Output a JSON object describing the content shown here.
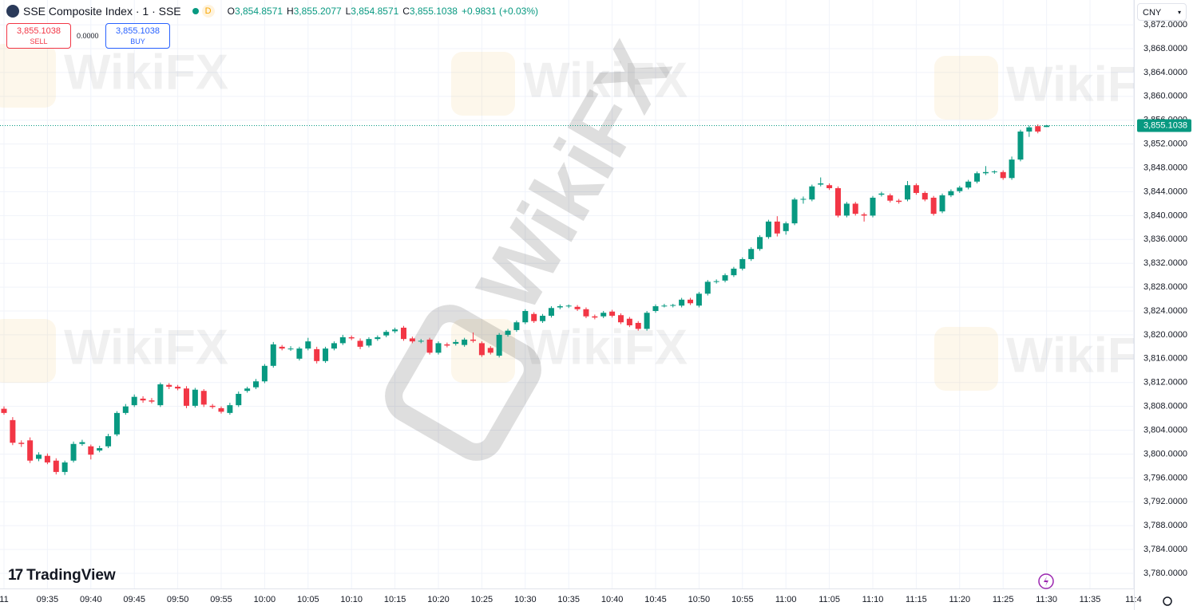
{
  "header": {
    "title": "SSE Composite Index · 1 · SSE",
    "badge": "D",
    "ohlc": [
      {
        "label": "O",
        "value": "3,854.8571"
      },
      {
        "label": "H",
        "value": "3,855.2077"
      },
      {
        "label": "L",
        "value": "3,854.8571"
      },
      {
        "label": "C",
        "value": "3,855.1038"
      }
    ],
    "change": "+0.9831 (+0.03%)"
  },
  "trade": {
    "sell_price": "3,855.1038",
    "sell": "SELL",
    "spread": "0.0000",
    "buy_price": "3,855.1038",
    "buy": "BUY"
  },
  "currency": "CNY",
  "brand": "TradingView",
  "watermark": "WikiFX",
  "chart_data": {
    "type": "candlestick",
    "up_color": "#089981",
    "down_color": "#f23645",
    "grid": true,
    "ylim": [
      3777.46,
      3876.16
    ],
    "yticks": [
      {
        "value": 3780,
        "label": "3,780.0000"
      },
      {
        "value": 3784,
        "label": "3,784.0000"
      },
      {
        "value": 3788,
        "label": "3,788.0000"
      },
      {
        "value": 3792,
        "label": "3,792.0000"
      },
      {
        "value": 3796,
        "label": "3,796.0000"
      },
      {
        "value": 3800,
        "label": "3,800.0000"
      },
      {
        "value": 3804,
        "label": "3,804.0000"
      },
      {
        "value": 3808,
        "label": "3,808.0000"
      },
      {
        "value": 3812,
        "label": "3,812.0000"
      },
      {
        "value": 3816,
        "label": "3,816.0000"
      },
      {
        "value": 3820,
        "label": "3,820.0000"
      },
      {
        "value": 3824,
        "label": "3,824.0000"
      },
      {
        "value": 3828,
        "label": "3,828.0000"
      },
      {
        "value": 3832,
        "label": "3,832.0000"
      },
      {
        "value": 3836,
        "label": "3,836.0000"
      },
      {
        "value": 3840,
        "label": "3,840.0000"
      },
      {
        "value": 3844,
        "label": "3,844.0000"
      },
      {
        "value": 3848,
        "label": "3,848.0000"
      },
      {
        "value": 3852,
        "label": "3,852.0000"
      },
      {
        "value": 3856,
        "label": "3,856.0000"
      },
      {
        "value": 3860,
        "label": "3,860.0000"
      },
      {
        "value": 3864,
        "label": "3,864.0000"
      },
      {
        "value": 3868,
        "label": "3,868.0000"
      },
      {
        "value": 3872,
        "label": "3,872.0000"
      }
    ],
    "x_labels": [
      "11",
      "09:35",
      "09:40",
      "09:45",
      "09:50",
      "09:55",
      "10:00",
      "10:05",
      "10:10",
      "10:15",
      "10:20",
      "10:25",
      "10:30",
      "10:35",
      "10:40",
      "10:45",
      "10:50",
      "10:55",
      "11:00",
      "11:05",
      "11:10",
      "11:15",
      "11:20",
      "11:25",
      "11:30",
      "11:35",
      "11:4"
    ],
    "last_price": {
      "value": 3855.1038,
      "label": "3,855.1038"
    },
    "ohlc": [
      [
        3807.6,
        3808.0,
        3806.6,
        3806.9
      ],
      [
        3805.7,
        3806.2,
        3801.5,
        3801.9
      ],
      [
        3801.9,
        3802.3,
        3801.2,
        3801.7
      ],
      [
        3802.3,
        3802.8,
        3798.5,
        3798.9
      ],
      [
        3799.2,
        3800.3,
        3798.8,
        3799.9
      ],
      [
        3799.7,
        3800.1,
        3798.3,
        3798.6
      ],
      [
        3798.9,
        3799.3,
        3796.6,
        3797.0
      ],
      [
        3797.0,
        3798.9,
        3796.5,
        3798.6
      ],
      [
        3798.9,
        3802.1,
        3798.6,
        3801.7
      ],
      [
        3801.7,
        3802.4,
        3801.4,
        3802.0
      ],
      [
        3801.3,
        3801.6,
        3799.1,
        3799.9
      ],
      [
        3800.6,
        3801.4,
        3800.3,
        3801.0
      ],
      [
        3801.3,
        3803.4,
        3801.0,
        3803.0
      ],
      [
        3803.3,
        3807.2,
        3803.0,
        3806.9
      ],
      [
        3806.9,
        3808.4,
        3806.6,
        3808.0
      ],
      [
        3808.2,
        3810.0,
        3807.9,
        3809.6
      ],
      [
        3809.3,
        3809.7,
        3808.6,
        3809.0
      ],
      [
        3809.0,
        3809.4,
        3808.5,
        3808.8
      ],
      [
        3808.2,
        3812.0,
        3807.9,
        3811.7
      ],
      [
        3811.6,
        3811.9,
        3810.9,
        3811.3
      ],
      [
        3811.3,
        3811.6,
        3810.7,
        3811.0
      ],
      [
        3811.0,
        3811.4,
        3807.7,
        3808.1
      ],
      [
        3808.1,
        3811.1,
        3807.8,
        3810.8
      ],
      [
        3810.6,
        3810.9,
        3807.9,
        3808.3
      ],
      [
        3808.1,
        3808.4,
        3807.6,
        3807.9
      ],
      [
        3807.7,
        3808.0,
        3806.8,
        3807.1
      ],
      [
        3806.9,
        3808.6,
        3806.6,
        3808.2
      ],
      [
        3808.2,
        3810.5,
        3807.9,
        3810.1
      ],
      [
        3810.6,
        3811.3,
        3810.3,
        3811.0
      ],
      [
        3811.2,
        3812.6,
        3810.9,
        3812.2
      ],
      [
        3812.2,
        3815.1,
        3811.9,
        3814.8
      ],
      [
        3814.8,
        3818.8,
        3814.5,
        3818.4
      ],
      [
        3818.0,
        3818.3,
        3817.4,
        3817.7
      ],
      [
        3817.6,
        3818.1,
        3817.3,
        3817.7
      ],
      [
        3816.0,
        3818.0,
        3815.7,
        3817.7
      ],
      [
        3817.7,
        3819.5,
        3817.4,
        3818.9
      ],
      [
        3817.6,
        3818.0,
        3815.2,
        3815.6
      ],
      [
        3815.6,
        3818.0,
        3815.3,
        3817.7
      ],
      [
        3817.7,
        3818.9,
        3817.4,
        3818.6
      ],
      [
        3818.6,
        3820.0,
        3818.3,
        3819.6
      ],
      [
        3819.6,
        3819.9,
        3819.1,
        3819.4
      ],
      [
        3819.0,
        3819.4,
        3817.6,
        3818.0
      ],
      [
        3818.2,
        3819.6,
        3817.9,
        3819.3
      ],
      [
        3819.3,
        3819.9,
        3819.0,
        3819.6
      ],
      [
        3819.9,
        3820.8,
        3819.6,
        3820.5
      ],
      [
        3820.6,
        3821.2,
        3820.3,
        3820.9
      ],
      [
        3821.2,
        3821.5,
        3819.0,
        3819.3
      ],
      [
        3819.4,
        3819.7,
        3818.6,
        3818.9
      ],
      [
        3818.9,
        3819.3,
        3818.6,
        3819.0
      ],
      [
        3819.2,
        3819.5,
        3816.7,
        3817.0
      ],
      [
        3817.0,
        3818.9,
        3816.7,
        3818.6
      ],
      [
        3818.4,
        3818.7,
        3817.9,
        3818.2
      ],
      [
        3818.5,
        3819.2,
        3818.2,
        3818.8
      ],
      [
        3818.3,
        3819.5,
        3818.0,
        3819.2
      ],
      [
        3819.2,
        3820.4,
        3818.7,
        3819.0
      ],
      [
        3818.6,
        3818.9,
        3816.3,
        3816.6
      ],
      [
        3817.8,
        3818.1,
        3816.7,
        3817.0
      ],
      [
        3816.5,
        3820.3,
        3816.2,
        3820.0
      ],
      [
        3820.0,
        3821.0,
        3819.7,
        3820.7
      ],
      [
        3820.8,
        3822.4,
        3820.5,
        3822.1
      ],
      [
        3822.1,
        3824.3,
        3821.8,
        3824.0
      ],
      [
        3823.5,
        3823.8,
        3822.0,
        3822.3
      ],
      [
        3822.3,
        3823.5,
        3822.0,
        3823.2
      ],
      [
        3823.2,
        3824.8,
        3822.9,
        3824.5
      ],
      [
        3824.6,
        3825.1,
        3824.3,
        3824.8
      ],
      [
        3824.8,
        3825.1,
        3824.5,
        3824.9
      ],
      [
        3824.7,
        3825.0,
        3824.0,
        3824.3
      ],
      [
        3824.3,
        3824.6,
        3822.8,
        3823.1
      ],
      [
        3823.1,
        3823.4,
        3822.6,
        3822.9
      ],
      [
        3823.1,
        3824.0,
        3822.8,
        3823.7
      ],
      [
        3823.9,
        3824.2,
        3822.9,
        3823.2
      ],
      [
        3823.3,
        3823.6,
        3821.8,
        3822.1
      ],
      [
        3822.7,
        3823.0,
        3821.3,
        3821.6
      ],
      [
        3822.0,
        3822.3,
        3820.7,
        3821.0
      ],
      [
        3821.0,
        3824.0,
        3820.7,
        3823.7
      ],
      [
        3824.0,
        3825.1,
        3823.7,
        3824.8
      ],
      [
        3824.8,
        3825.2,
        3824.6,
        3824.9
      ],
      [
        3824.9,
        3825.2,
        3824.6,
        3825.0
      ],
      [
        3824.9,
        3826.2,
        3824.6,
        3825.9
      ],
      [
        3825.9,
        3826.2,
        3825.0,
        3825.3
      ],
      [
        3824.9,
        3827.2,
        3824.6,
        3826.9
      ],
      [
        3826.9,
        3829.2,
        3826.6,
        3828.9
      ],
      [
        3828.9,
        3829.3,
        3828.6,
        3829.0
      ],
      [
        3829.1,
        3830.3,
        3828.8,
        3830.0
      ],
      [
        3830.0,
        3831.4,
        3829.7,
        3831.1
      ],
      [
        3831.1,
        3833.0,
        3830.8,
        3832.7
      ],
      [
        3832.7,
        3834.7,
        3832.4,
        3834.4
      ],
      [
        3834.4,
        3836.7,
        3834.1,
        3836.4
      ],
      [
        3836.4,
        3839.3,
        3836.1,
        3839.0
      ],
      [
        3839.0,
        3839.9,
        3836.5,
        3837.0
      ],
      [
        3837.4,
        3839.0,
        3836.8,
        3838.7
      ],
      [
        3838.7,
        3843.0,
        3838.4,
        3842.7
      ],
      [
        3842.7,
        3843.2,
        3842.0,
        3842.8
      ],
      [
        3842.7,
        3845.2,
        3842.4,
        3844.9
      ],
      [
        3845.2,
        3846.4,
        3844.9,
        3845.4
      ],
      [
        3845.1,
        3845.4,
        3844.3,
        3844.6
      ],
      [
        3844.6,
        3844.9,
        3839.7,
        3840.0
      ],
      [
        3840.0,
        3842.3,
        3839.7,
        3842.0
      ],
      [
        3842.0,
        3842.3,
        3840.0,
        3840.3
      ],
      [
        3840.2,
        3840.5,
        3839.0,
        3840.0
      ],
      [
        3840.0,
        3843.3,
        3839.7,
        3843.0
      ],
      [
        3843.5,
        3844.0,
        3843.2,
        3843.7
      ],
      [
        3843.4,
        3843.7,
        3842.2,
        3842.5
      ],
      [
        3842.5,
        3842.8,
        3842.0,
        3842.3
      ],
      [
        3842.7,
        3845.8,
        3842.4,
        3845.1
      ],
      [
        3845.1,
        3845.4,
        3843.5,
        3843.8
      ],
      [
        3843.8,
        3844.1,
        3842.4,
        3842.7
      ],
      [
        3843.0,
        3843.3,
        3840.0,
        3840.3
      ],
      [
        3840.7,
        3843.7,
        3840.4,
        3843.4
      ],
      [
        3843.4,
        3844.4,
        3843.1,
        3844.1
      ],
      [
        3844.1,
        3845.0,
        3843.8,
        3844.7
      ],
      [
        3844.7,
        3846.0,
        3844.4,
        3845.7
      ],
      [
        3845.7,
        3847.4,
        3845.4,
        3847.1
      ],
      [
        3847.1,
        3848.3,
        3846.8,
        3847.3
      ],
      [
        3847.3,
        3847.6,
        3847.0,
        3847.4
      ],
      [
        3847.3,
        3847.6,
        3846.0,
        3846.3
      ],
      [
        3846.3,
        3849.9,
        3846.0,
        3849.4
      ],
      [
        3849.4,
        3854.4,
        3849.1,
        3854.1
      ],
      [
        3854.1,
        3855.1,
        3853.2,
        3854.8
      ],
      [
        3855.0,
        3855.3,
        3853.8,
        3854.1
      ],
      [
        3854.8571,
        3855.2077,
        3854.8571,
        3855.1038
      ]
    ]
  }
}
